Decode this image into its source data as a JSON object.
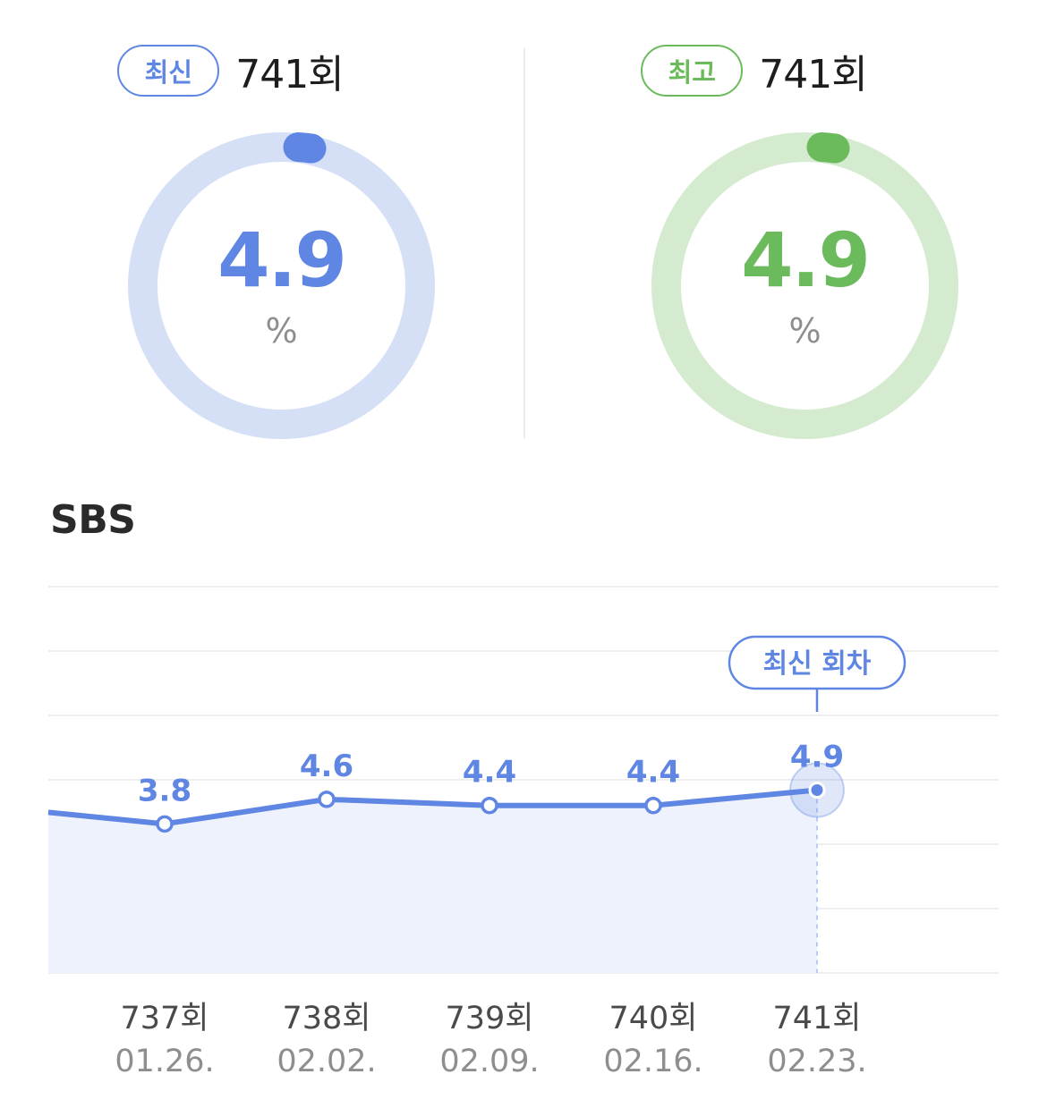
{
  "summary": {
    "latest": {
      "badge": "최신",
      "episode": "741회",
      "value": "4.9",
      "unit": "%",
      "color": "#5f86e3",
      "track_color": "#d5e0f7"
    },
    "best": {
      "badge": "최고",
      "episode": "741회",
      "value": "4.9",
      "unit": "%",
      "color": "#6bbb5c",
      "track_color": "#d5ebd0"
    }
  },
  "section_title": "SBS",
  "chart_data": {
    "type": "area",
    "title": "SBS",
    "series": [
      {
        "values": [
          3.8,
          4.6,
          4.4,
          4.4,
          4.9
        ],
        "color": "#5f86e3"
      }
    ],
    "categories": [
      "737회",
      "738회",
      "739회",
      "740회",
      "741회"
    ],
    "dates": [
      "01.26.",
      "02.02.",
      "02.09.",
      "02.16.",
      "02.23."
    ],
    "data_labels": [
      "3.8",
      "4.6",
      "4.4",
      "4.4",
      "4.9"
    ],
    "callout": "최신 회차",
    "highlight_index": 4,
    "grid": true
  }
}
